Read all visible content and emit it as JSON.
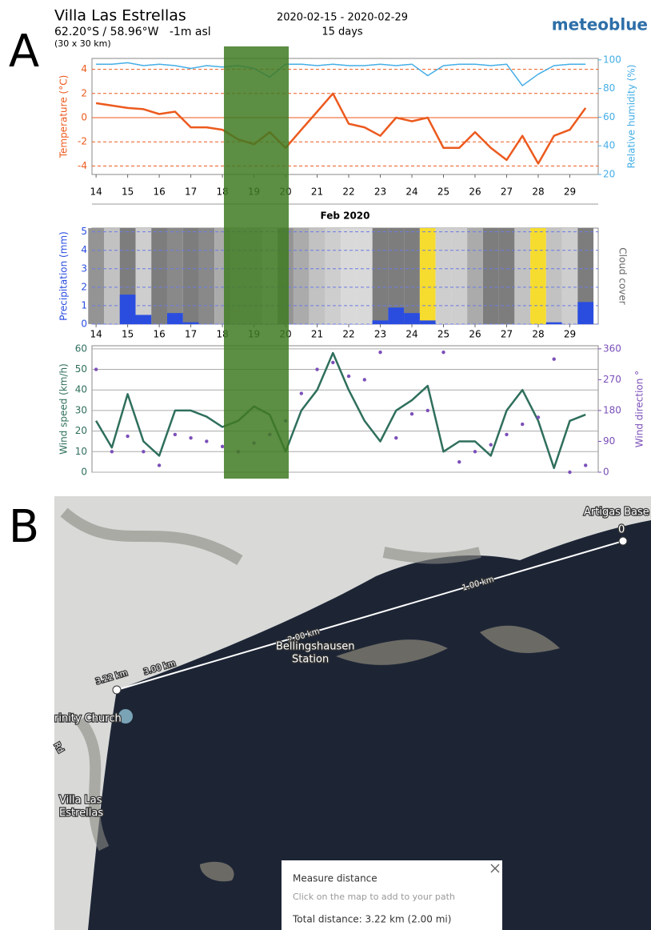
{
  "panel_labels": [
    "A",
    "B"
  ],
  "header": {
    "location": "Villa Las Estrellas",
    "coordinates": "62.20°S / 58.96°W   -1m asl",
    "resolution": "(30 x 30 km)",
    "date_range": "2020-02-15 - 2020-02-29",
    "duration": "15 days",
    "brand": "meteoblue"
  },
  "chart_data": [
    {
      "type": "line",
      "xlabel": "Feb 2020",
      "ylabel": "Temperature (°C)",
      "y2label": "Relative humidity (%)",
      "x": [
        14,
        14.5,
        15,
        15.5,
        16,
        16.5,
        17,
        17.5,
        18,
        18.5,
        19,
        19.5,
        20,
        20.5,
        21,
        21.5,
        22,
        22.5,
        23,
        23.5,
        24,
        24.5,
        25,
        25.5,
        26,
        26.5,
        27,
        27.5,
        28,
        28.5,
        29,
        29.5
      ],
      "xlim": [
        13.87,
        29.9
      ],
      "xticks": [
        14,
        15,
        16,
        17,
        18,
        19,
        20,
        21,
        22,
        23,
        24,
        25,
        26,
        27,
        28,
        29
      ],
      "ylim": [
        -4.7,
        4.9
      ],
      "yticks": [
        -4,
        -2,
        0,
        2,
        4
      ],
      "y2lim": [
        20,
        101
      ],
      "y2ticks": [
        20,
        40,
        60,
        80,
        100
      ],
      "grid": true,
      "series": [
        {
          "color": "#ec5a1e",
          "values": [
            1.2,
            1.0,
            0.8,
            0.7,
            0.3,
            0.5,
            -0.8,
            -0.8,
            -1.0,
            -1.8,
            -2.2,
            -1.2,
            -2.5,
            -1.0,
            0.5,
            2.0,
            -0.5,
            -0.8,
            -1.5,
            0.0,
            -0.3,
            0.0,
            -2.5,
            -2.5,
            -1.2,
            -2.5,
            -3.5,
            -1.5,
            -3.8,
            -1.5,
            -1.0,
            0.8
          ]
        },
        {
          "color": "#45aee6",
          "axis": "y2",
          "values": [
            97,
            97,
            98,
            96,
            97,
            96,
            94,
            96,
            95,
            96,
            94,
            88,
            97,
            97,
            96,
            97,
            96,
            96,
            97,
            96,
            97,
            89,
            96,
            97,
            97,
            96,
            97,
            82,
            90,
            96,
            97,
            97
          ]
        }
      ]
    },
    {
      "type": "bar",
      "ylabel": "Precipitation (mm)",
      "x": [
        14,
        14.5,
        15,
        15.5,
        16,
        16.5,
        17,
        17.5,
        18,
        18.5,
        19,
        19.5,
        20,
        20.5,
        21,
        21.5,
        22,
        22.5,
        23,
        23.5,
        24,
        24.5,
        25,
        25.5,
        26,
        26.5,
        27,
        27.5,
        28,
        28.5,
        29,
        29.5
      ],
      "xlim": [
        13.87,
        29.9
      ],
      "xticks": [
        14,
        15,
        16,
        17,
        18,
        19,
        20,
        21,
        22,
        23,
        24,
        25,
        26,
        27,
        28,
        29
      ],
      "ylim": [
        0,
        5.2
      ],
      "yticks": [
        0,
        1,
        2,
        3,
        4,
        5
      ],
      "grid": true,
      "color": "#2a4de0",
      "values": [
        0,
        0,
        1.6,
        0.5,
        0,
        0.6,
        0.1,
        0,
        0,
        0,
        0,
        0,
        0,
        0,
        0,
        0,
        0,
        0,
        0.2,
        0.9,
        0.6,
        0.2,
        0,
        0,
        0,
        0,
        0,
        0,
        0,
        0.1,
        0,
        1.2
      ],
      "cloud_cover": {
        "name": "Cloud cover",
        "values": [
          80,
          40,
          100,
          30,
          100,
          90,
          100,
          90,
          60,
          40,
          40,
          20,
          80,
          60,
          40,
          30,
          20,
          20,
          100,
          100,
          100,
          0,
          30,
          30,
          60,
          100,
          100,
          40,
          0,
          40,
          30,
          100
        ]
      }
    },
    {
      "type": "line",
      "ylabel": "Wind speed (km/h)",
      "y2label": "Wind direction °",
      "x": [
        14,
        14.5,
        15,
        15.5,
        16,
        16.5,
        17,
        17.5,
        18,
        18.5,
        19,
        19.5,
        20,
        20.5,
        21,
        21.5,
        22,
        22.5,
        23,
        23.5,
        24,
        24.5,
        25,
        25.5,
        26,
        26.5,
        27,
        27.5,
        28,
        28.5,
        29,
        29.5
      ],
      "xlim": [
        13.87,
        29.9
      ],
      "ylim": [
        0,
        61.5
      ],
      "yticks": [
        0,
        10,
        20,
        30,
        40,
        50,
        60
      ],
      "y2lim": [
        0,
        369
      ],
      "y2ticks": [
        0,
        90,
        180,
        270,
        360
      ],
      "grid": true,
      "series": [
        {
          "color": "#2f6f5c",
          "values": [
            25,
            12,
            38,
            15,
            8,
            30,
            30,
            27,
            22,
            25,
            32,
            28,
            10,
            30,
            40,
            58,
            40,
            25,
            15,
            30,
            35,
            42,
            10,
            15,
            15,
            8,
            30,
            40,
            25,
            2,
            25,
            28
          ]
        },
        {
          "color": "#7b4fb8",
          "axis": "y2",
          "marker": "dots",
          "values": [
            300,
            60,
            105,
            60,
            20,
            110,
            100,
            90,
            75,
            60,
            85,
            110,
            150,
            230,
            300,
            320,
            280,
            270,
            350,
            100,
            170,
            180,
            350,
            30,
            60,
            80,
            110,
            140,
            160,
            330,
            0,
            20
          ]
        }
      ]
    }
  ],
  "map": {
    "artigas": "Artigas Base",
    "bellingshausen": [
      "Bellingshausen",
      "Station"
    ],
    "church": "rinity Church",
    "road": "Rd",
    "village": [
      "Villa Las",
      "Estrellas"
    ],
    "distances": [
      "0",
      "1.00 km",
      "2.00 km",
      "3.00 km",
      "3.22 km"
    ],
    "dialog": {
      "title": "Measure distance",
      "hint": "Click on the map to add to your path",
      "total": "Total distance: 3.22 km (2.00 mi)"
    }
  }
}
